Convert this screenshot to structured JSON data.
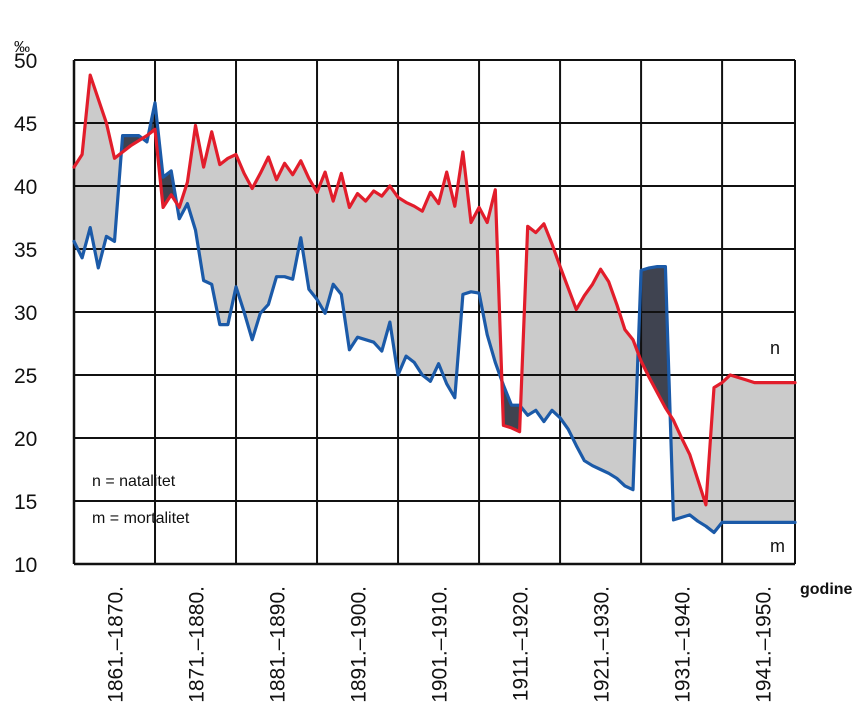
{
  "chart_data": {
    "type": "line",
    "ylabel": "‰",
    "xlabel": "godine",
    "ylim": [
      10,
      50
    ],
    "yticks": [
      10,
      15,
      20,
      25,
      30,
      35,
      40,
      45,
      50
    ],
    "xlim": [
      1861,
      1950
    ],
    "categories": [
      "1861.–1870.",
      "1871.–1880.",
      "1881.–1890.",
      "1891.–1900.",
      "1901.–1910.",
      "1911.–1920.",
      "1921.–1930.",
      "1931.–1940.",
      "1941.–1950."
    ],
    "grid": true,
    "colors": {
      "n": "#e21d2b",
      "m": "#1b5aa8",
      "fill_light": "#cbcbcb",
      "fill_dark": "#3f4350"
    },
    "legend": {
      "entries": [
        "n = natalitet",
        "m = mortalitet"
      ],
      "placement": "bottom-left"
    },
    "series": [
      {
        "name": "n",
        "color": "#e21d2b",
        "x": [
          1861,
          1862,
          1863,
          1865,
          1866,
          1867,
          1868,
          1869,
          1870,
          1871,
          1872,
          1873,
          1874,
          1875,
          1876,
          1877,
          1878,
          1879,
          1880,
          1881,
          1882,
          1883,
          1884,
          1885,
          1886,
          1887,
          1888,
          1889,
          1890,
          1891,
          1892,
          1893,
          1894,
          1895,
          1896,
          1897,
          1898,
          1899,
          1900,
          1901,
          1902,
          1903,
          1904,
          1905,
          1906,
          1907,
          1908,
          1909,
          1910,
          1911,
          1912,
          1913,
          1914,
          1915,
          1916,
          1917,
          1918,
          1919,
          1920,
          1921,
          1922,
          1923,
          1924,
          1925,
          1926,
          1927,
          1928,
          1929,
          1930,
          1931,
          1932,
          1933,
          1934,
          1935,
          1936,
          1937,
          1938,
          1939,
          1940,
          1941,
          1942,
          1943,
          1944,
          1945,
          1946,
          1947,
          1948,
          1949,
          1950
        ],
        "values": [
          41.5,
          42.5,
          48.8,
          45.0,
          42.2,
          42.7,
          43.2,
          43.6,
          44.0,
          44.5,
          38.3,
          39.3,
          38.3,
          40.3,
          44.8,
          41.5,
          44.3,
          41.7,
          42.2,
          42.5,
          41.0,
          39.8,
          41.0,
          42.3,
          40.5,
          41.8,
          40.9,
          42.0,
          40.6,
          39.5,
          41.1,
          38.8,
          41.0,
          38.3,
          39.4,
          38.8,
          39.6,
          39.2,
          40.0,
          39.1,
          38.7,
          38.4,
          38.0,
          39.5,
          38.6,
          41.1,
          38.4,
          42.7,
          37.1,
          38.3,
          37.1,
          39.7,
          21.0,
          20.8,
          20.5,
          36.8,
          36.3,
          37.0,
          35.4,
          33.6,
          31.9,
          30.2,
          31.3,
          32.2,
          33.4,
          32.4,
          30.6,
          28.6,
          27.8,
          26.1,
          24.8,
          23.6,
          22.4,
          21.4,
          20.0,
          18.7,
          16.7,
          14.7,
          24.0,
          24.4,
          25.0,
          24.8,
          24.6,
          24.4,
          24.4,
          24.4,
          24.4,
          24.4,
          24.4
        ],
        "label": "n"
      },
      {
        "name": "m",
        "color": "#1b5aa8",
        "x": [
          1861,
          1862,
          1863,
          1864,
          1865,
          1866,
          1867,
          1868,
          1869,
          1870,
          1871,
          1872,
          1873,
          1874,
          1875,
          1876,
          1877,
          1878,
          1879,
          1880,
          1881,
          1882,
          1883,
          1884,
          1885,
          1886,
          1887,
          1888,
          1889,
          1890,
          1891,
          1892,
          1893,
          1894,
          1895,
          1896,
          1897,
          1898,
          1899,
          1900,
          1901,
          1902,
          1903,
          1904,
          1905,
          1906,
          1907,
          1908,
          1909,
          1910,
          1911,
          1912,
          1913,
          1914,
          1915,
          1916,
          1917,
          1918,
          1919,
          1920,
          1921,
          1922,
          1923,
          1924,
          1925,
          1926,
          1927,
          1928,
          1929,
          1930,
          1931,
          1932,
          1933,
          1934,
          1935,
          1936,
          1937,
          1938,
          1939,
          1940,
          1941,
          1942,
          1943,
          1944,
          1945,
          1946,
          1947,
          1948,
          1949,
          1950
        ],
        "values": [
          35.6,
          34.3,
          36.7,
          33.5,
          36.0,
          35.6,
          44.0,
          44.0,
          44.0,
          43.5,
          46.6,
          40.7,
          41.2,
          37.4,
          38.6,
          36.5,
          32.5,
          32.2,
          29.0,
          29.0,
          32.0,
          30.0,
          27.8,
          29.9,
          30.6,
          32.8,
          32.8,
          32.6,
          35.9,
          31.8,
          31.0,
          29.9,
          32.2,
          31.4,
          27.0,
          28.0,
          27.8,
          27.6,
          26.9,
          29.2,
          25.0,
          26.5,
          26.0,
          25.0,
          24.5,
          25.9,
          24.3,
          23.2,
          31.4,
          31.6,
          31.5,
          28.2,
          26.0,
          24.2,
          22.6,
          22.6,
          21.8,
          22.2,
          21.3,
          22.2,
          21.6,
          20.7,
          19.4,
          18.2,
          17.8,
          17.5,
          17.2,
          16.8,
          16.2,
          15.9,
          33.3,
          33.5,
          33.6,
          33.6,
          13.5,
          13.7,
          13.9,
          13.4,
          13.0,
          12.5,
          13.3,
          13.3,
          13.3,
          13.3,
          13.3,
          13.3,
          13.3,
          13.3,
          13.3,
          13.3
        ],
        "label": "m"
      }
    ]
  }
}
